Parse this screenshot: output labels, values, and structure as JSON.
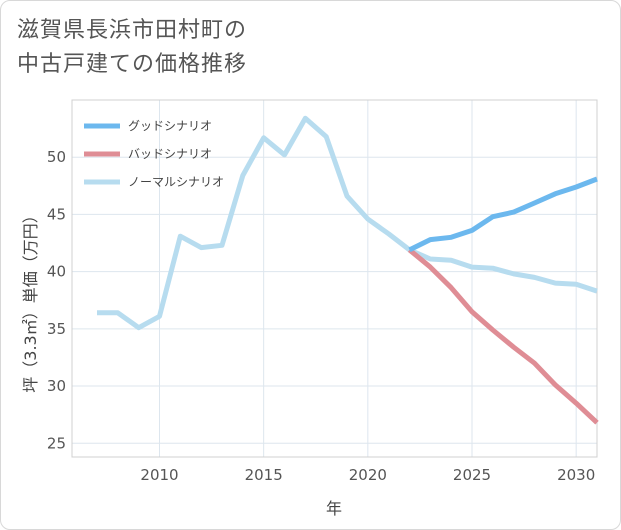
{
  "title_line1": "滋賀県長浜市田村町の",
  "title_line2": "中古戸建ての価格推移",
  "chart_data": {
    "type": "line",
    "xlabel": "年",
    "ylabel": "坪（3.3㎡）単価（万円）",
    "xlim": [
      2005.8,
      2031
    ],
    "ylim": [
      23.8,
      55
    ],
    "xticks": [
      2010,
      2015,
      2020,
      2025,
      2030
    ],
    "yticks": [
      25,
      30,
      35,
      40,
      45,
      50
    ],
    "legend_position": "top-left",
    "series": [
      {
        "name": "グッドシナリオ",
        "color": "#6cb8ee",
        "x": [
          2022,
          2023,
          2024,
          2025,
          2026,
          2027,
          2028,
          2029,
          2030,
          2031
        ],
        "y": [
          41.9,
          42.8,
          43.0,
          43.6,
          44.8,
          45.2,
          46.0,
          46.8,
          47.4,
          48.1
        ]
      },
      {
        "name": "バッドシナリオ",
        "color": "#df8d95",
        "x": [
          2022,
          2023,
          2024,
          2025,
          2026,
          2027,
          2028,
          2029,
          2030,
          2031
        ],
        "y": [
          41.9,
          40.4,
          38.6,
          36.5,
          34.9,
          33.4,
          32.0,
          30.1,
          28.5,
          26.8
        ]
      },
      {
        "name": "ノーマルシナリオ",
        "color": "#b7dcef",
        "x": [
          2007,
          2008,
          2009,
          2010,
          2011,
          2012,
          2013,
          2014,
          2015,
          2016,
          2017,
          2018,
          2019,
          2020,
          2021,
          2022,
          2023,
          2024,
          2025,
          2026,
          2027,
          2028,
          2029,
          2030,
          2031
        ],
        "y": [
          36.4,
          36.4,
          35.1,
          36.1,
          43.1,
          42.1,
          42.3,
          48.4,
          51.7,
          50.2,
          53.4,
          51.8,
          46.6,
          44.6,
          43.3,
          41.9,
          41.1,
          41.0,
          40.4,
          40.3,
          39.8,
          39.5,
          39.0,
          38.9,
          38.3
        ]
      }
    ]
  }
}
